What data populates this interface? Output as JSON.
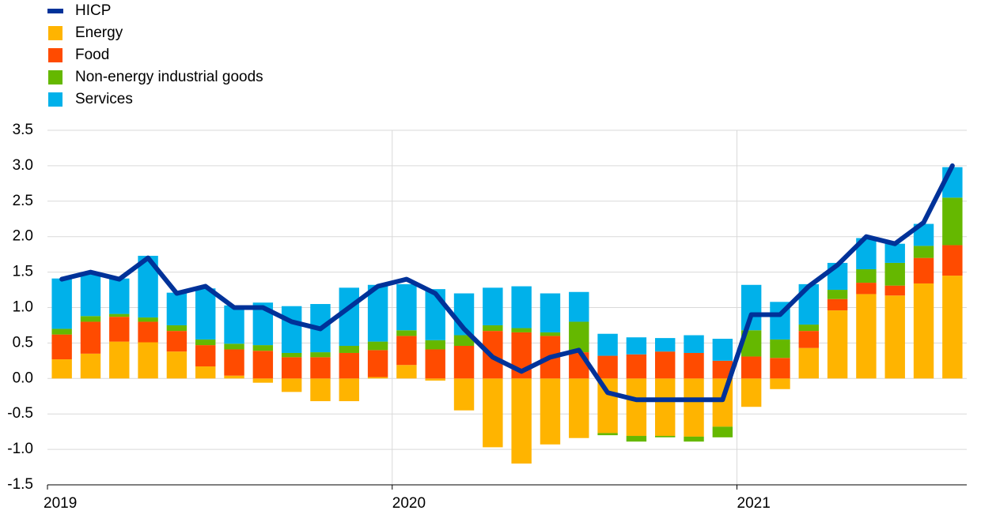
{
  "chart_data": {
    "type": "bar",
    "categories": [
      "2019",
      null,
      null,
      null,
      null,
      null,
      null,
      null,
      null,
      null,
      null,
      null,
      "2020",
      null,
      null,
      null,
      null,
      null,
      null,
      null,
      null,
      null,
      null,
      null,
      "2021",
      null,
      null,
      null,
      null,
      null,
      null,
      null
    ],
    "series": [
      {
        "name": "HICP",
        "type": "line",
        "color": "#003299",
        "values": [
          1.4,
          1.5,
          1.4,
          1.7,
          1.2,
          1.3,
          1.0,
          1.0,
          0.8,
          0.7,
          1.0,
          1.3,
          1.4,
          1.2,
          0.7,
          0.3,
          0.1,
          0.3,
          0.4,
          -0.2,
          -0.3,
          -0.3,
          -0.3,
          -0.3,
          0.9,
          0.9,
          1.3,
          1.6,
          2.0,
          1.9,
          2.2,
          3.0
        ]
      },
      {
        "name": "Energy",
        "color": "#ffb400",
        "values": [
          0.27,
          0.35,
          0.52,
          0.51,
          0.38,
          0.17,
          0.04,
          -0.06,
          -0.19,
          -0.32,
          -0.32,
          0.02,
          0.19,
          -0.03,
          -0.45,
          -0.97,
          -1.2,
          -0.93,
          -0.84,
          -0.77,
          -0.81,
          -0.81,
          -0.82,
          -0.68,
          -0.4,
          -0.15,
          0.43,
          0.96,
          1.19,
          1.17,
          1.34,
          1.45
        ]
      },
      {
        "name": "Food",
        "color": "#ff4b00",
        "values": [
          0.35,
          0.45,
          0.35,
          0.29,
          0.29,
          0.3,
          0.37,
          0.39,
          0.3,
          0.3,
          0.36,
          0.38,
          0.41,
          0.41,
          0.46,
          0.67,
          0.65,
          0.6,
          0.37,
          0.32,
          0.34,
          0.38,
          0.36,
          0.25,
          0.31,
          0.29,
          0.24,
          0.16,
          0.16,
          0.14,
          0.36,
          0.43
        ]
      },
      {
        "name": "Non-energy industrial goods",
        "color": "#65b800",
        "values": [
          0.08,
          0.08,
          0.04,
          0.06,
          0.08,
          0.08,
          0.08,
          0.08,
          0.06,
          0.07,
          0.1,
          0.12,
          0.08,
          0.13,
          0.15,
          0.08,
          0.06,
          0.05,
          0.43,
          -0.03,
          -0.08,
          -0.02,
          -0.07,
          -0.15,
          0.37,
          0.26,
          0.09,
          0.13,
          0.19,
          0.32,
          0.17,
          0.67
        ]
      },
      {
        "name": "Services",
        "color": "#00b1ea",
        "values": [
          0.71,
          0.6,
          0.5,
          0.87,
          0.46,
          0.72,
          0.54,
          0.6,
          0.66,
          0.68,
          0.82,
          0.8,
          0.65,
          0.72,
          0.59,
          0.53,
          0.59,
          0.55,
          0.42,
          0.31,
          0.24,
          0.19,
          0.25,
          0.31,
          0.64,
          0.53,
          0.57,
          0.38,
          0.44,
          0.27,
          0.31,
          0.43
        ]
      }
    ],
    "ylim": [
      -1.5,
      3.5
    ],
    "yticks": [
      -1.5,
      {
        "value": -1,
        "label": "-1.0"
      },
      -0.5,
      {
        "value": 0,
        "label": "0.0"
      },
      0.5,
      {
        "value": 1,
        "label": "1.0"
      },
      1.5,
      {
        "value": 2,
        "label": "2.0"
      },
      2.5,
      {
        "value": 3,
        "label": "3.0"
      },
      3.5
    ],
    "grid": true,
    "legend": "top-left"
  }
}
